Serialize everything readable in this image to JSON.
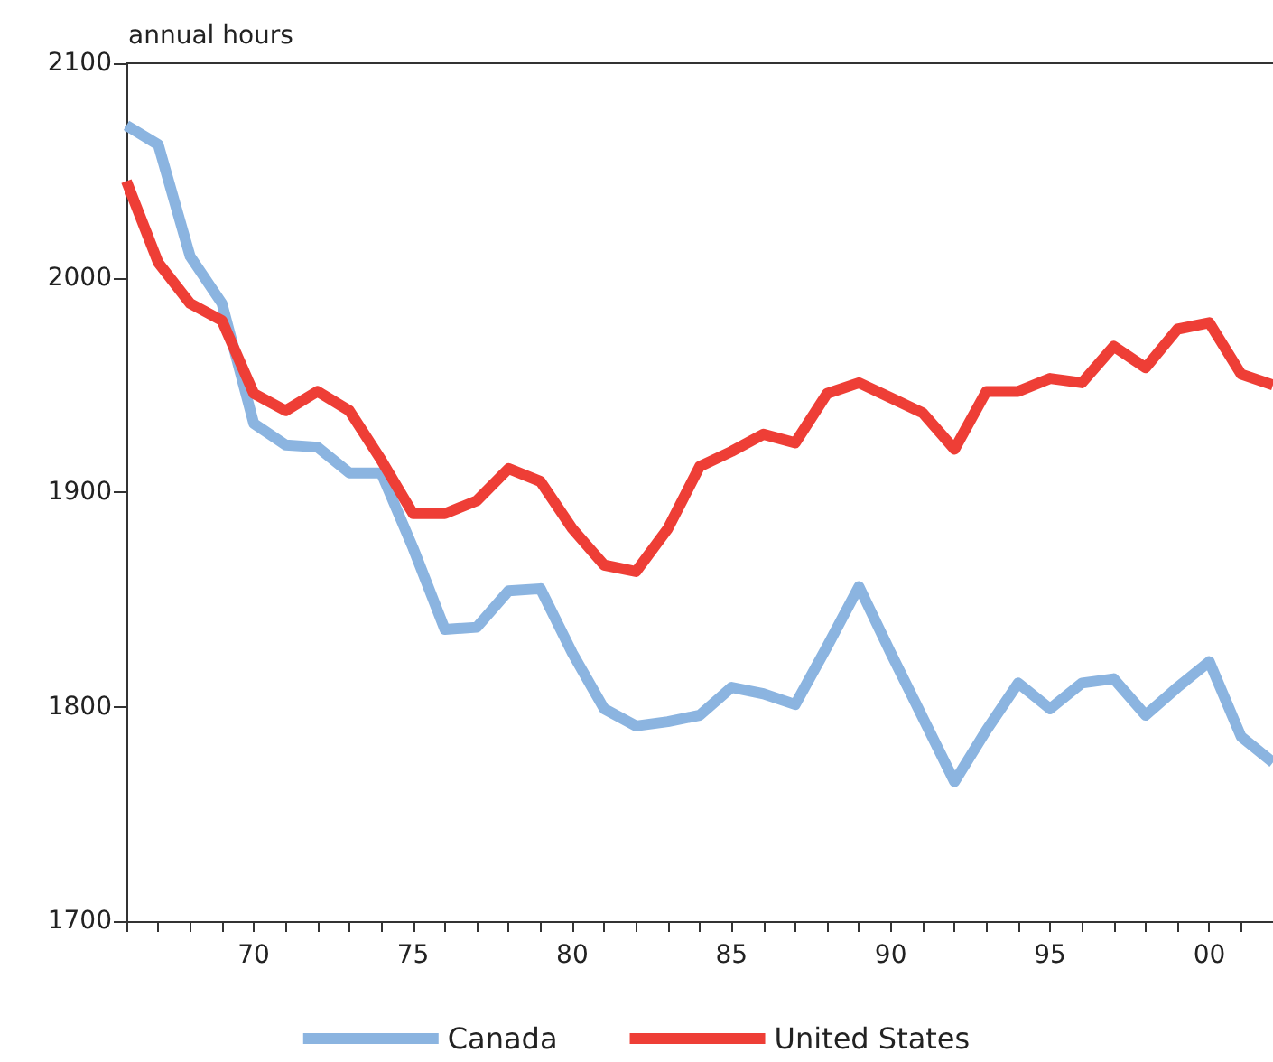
{
  "chart_data": {
    "type": "line",
    "ylabel": "annual hours",
    "x": [
      1966,
      1967,
      1968,
      1969,
      1970,
      1971,
      1972,
      1973,
      1974,
      1975,
      1976,
      1977,
      1978,
      1979,
      1980,
      1981,
      1982,
      1983,
      1984,
      1985,
      1986,
      1987,
      1988,
      1989,
      1990,
      1991,
      1992,
      1993,
      1994,
      1995,
      1996,
      1997,
      1998,
      1999,
      2000,
      2001,
      2002
    ],
    "series": [
      {
        "name": "Canada",
        "color": "#8bb4e0",
        "values": [
          2071,
          2062,
          2010,
          1988,
          1932,
          1922,
          1921,
          1909,
          1909,
          1874,
          1836,
          1837,
          1854,
          1855,
          1825,
          1799,
          1791,
          1793,
          1796,
          1809,
          1806,
          1801,
          1828,
          1856,
          1825,
          1795,
          1765,
          1789,
          1811,
          1799,
          1811,
          1813,
          1796,
          1809,
          1821,
          1786,
          1774
        ]
      },
      {
        "name": "United States",
        "color": "#ee3e36",
        "values": [
          2045,
          2007,
          1988,
          1980,
          1946,
          1938,
          1947,
          1938,
          1915,
          1890,
          1890,
          1896,
          1911,
          1905,
          1883,
          1866,
          1863,
          1883,
          1912,
          1919,
          1927,
          1923,
          1946,
          1951,
          1944,
          1937,
          1920,
          1947,
          1947,
          1953,
          1951,
          1968,
          1958,
          1976,
          1979,
          1955,
          1950
        ]
      }
    ],
    "xlim": [
      1966,
      2002
    ],
    "xticks": [
      {
        "value": 1966,
        "label": null
      },
      {
        "value": 1967,
        "label": null
      },
      {
        "value": 1968,
        "label": null
      },
      {
        "value": 1969,
        "label": null
      },
      {
        "value": 1970,
        "label": "70"
      },
      {
        "value": 1971,
        "label": null
      },
      {
        "value": 1972,
        "label": null
      },
      {
        "value": 1973,
        "label": null
      },
      {
        "value": 1974,
        "label": null
      },
      {
        "value": 1975,
        "label": "75"
      },
      {
        "value": 1976,
        "label": null
      },
      {
        "value": 1977,
        "label": null
      },
      {
        "value": 1978,
        "label": null
      },
      {
        "value": 1979,
        "label": null
      },
      {
        "value": 1980,
        "label": "80"
      },
      {
        "value": 1981,
        "label": null
      },
      {
        "value": 1982,
        "label": null
      },
      {
        "value": 1983,
        "label": null
      },
      {
        "value": 1984,
        "label": null
      },
      {
        "value": 1985,
        "label": "85"
      },
      {
        "value": 1986,
        "label": null
      },
      {
        "value": 1987,
        "label": null
      },
      {
        "value": 1988,
        "label": null
      },
      {
        "value": 1989,
        "label": null
      },
      {
        "value": 1990,
        "label": "90"
      },
      {
        "value": 1991,
        "label": null
      },
      {
        "value": 1992,
        "label": null
      },
      {
        "value": 1993,
        "label": null
      },
      {
        "value": 1994,
        "label": null
      },
      {
        "value": 1995,
        "label": "95"
      },
      {
        "value": 1996,
        "label": null
      },
      {
        "value": 1997,
        "label": null
      },
      {
        "value": 1998,
        "label": null
      },
      {
        "value": 1999,
        "label": null
      },
      {
        "value": 2000,
        "label": "00"
      },
      {
        "value": 2001,
        "label": null
      },
      {
        "value": 2002,
        "label": null
      }
    ],
    "ylim": [
      1700,
      2100
    ],
    "yticks": [
      1700,
      1800,
      1900,
      2000,
      2100
    ],
    "grid": false,
    "legend": "bottom",
    "marker": "none",
    "line_style": "solid"
  }
}
